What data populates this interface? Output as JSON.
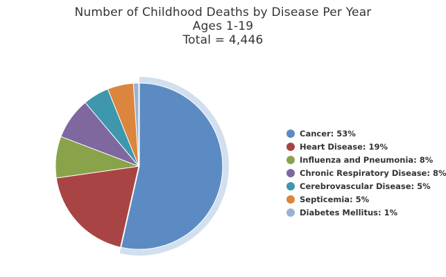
{
  "title": {
    "line1": "Number of Childhood Deaths by Disease Per Year",
    "line2": "Ages 1-19",
    "line3": "Total = 4,446"
  },
  "chart_data": {
    "type": "pie",
    "title": "Number of Childhood Deaths by Disease Per Year",
    "subtitle": [
      "Ages 1-19",
      "Total = 4,446"
    ],
    "legend_position": "right",
    "selected_slice": "Cancer",
    "slices": [
      {
        "name": "Cancer",
        "value": 53,
        "label": "Cancer: 53%",
        "color": "#5b8bc2"
      },
      {
        "name": "Heart Disease",
        "value": 19,
        "label": "Heart Disease: 19%",
        "color": "#a94444"
      },
      {
        "name": "Influenza and Pneumonia",
        "value": 8,
        "label": "Influenza and Pneumonia: 8%",
        "color": "#89a34b"
      },
      {
        "name": "Chronic Respiratory Disease",
        "value": 8,
        "label": "Chronic Respiratory Disease: 8%",
        "color": "#7f67a0"
      },
      {
        "name": "Cerebrovascular Disease",
        "value": 5,
        "label": "Cerebrovascular Disease: 5%",
        "color": "#3f97ad"
      },
      {
        "name": "Septicemia",
        "value": 5,
        "label": "Septicemia: 5%",
        "color": "#dc853e"
      },
      {
        "name": "Diabetes Mellitus",
        "value": 1,
        "label": "Diabetes Mellitus: 1%",
        "color": "#98b3d3"
      }
    ]
  }
}
